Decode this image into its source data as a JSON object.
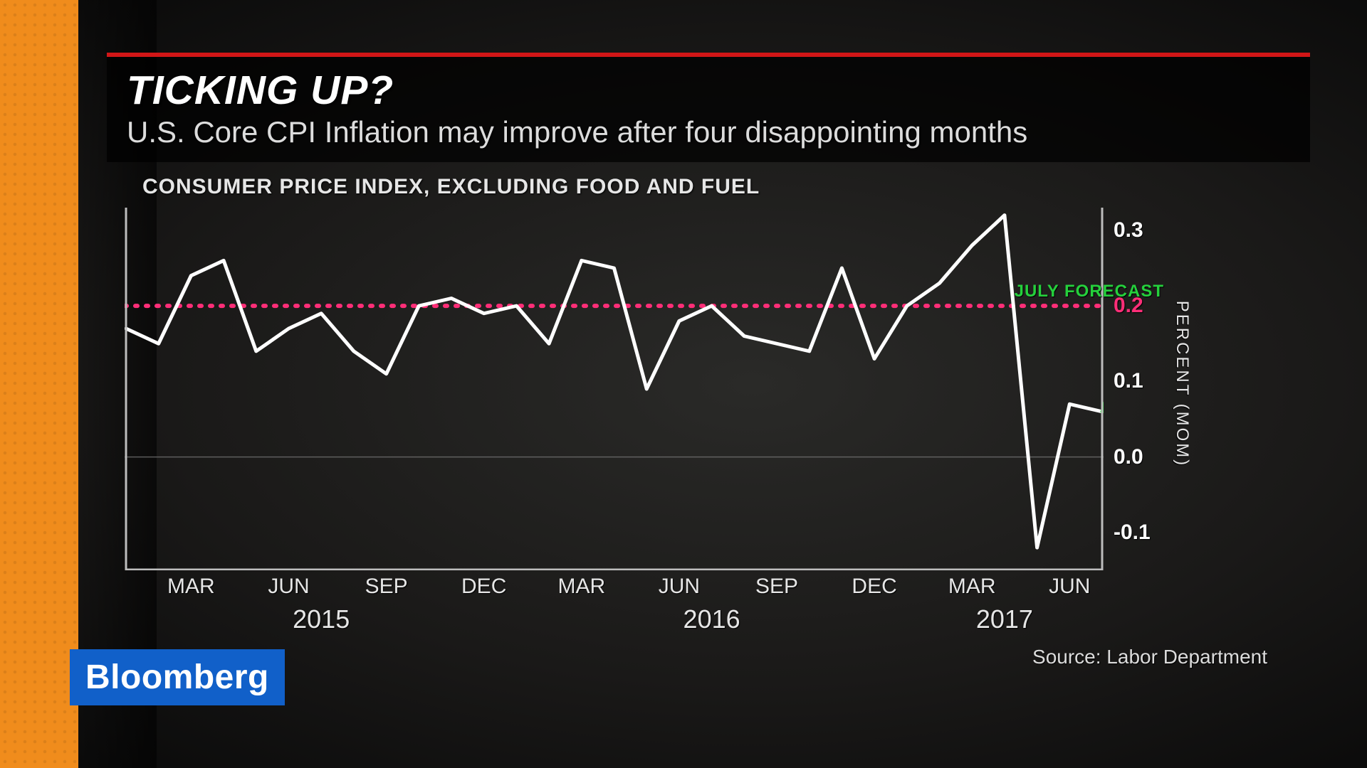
{
  "branding": {
    "logo_text": "Bloomberg",
    "logo_bg": "#1160c9",
    "logo_color": "#ffffff"
  },
  "header": {
    "rule_color": "#d11617",
    "title": "TICKING UP?",
    "subtitle_line": "U.S. Core CPI Inflation may improve after four disappointing months",
    "title_color": "#ffffff",
    "subtitle_color": "#dcdcdc",
    "title_fontsize": 57,
    "subtitle_fontsize": 42
  },
  "chart": {
    "type": "line",
    "subtitle": "CONSUMER PRICE INDEX, EXCLUDING FOOD AND FUEL",
    "subtitle_color": "#e6e6e6",
    "subtitle_fontsize": 30,
    "background_color": "transparent",
    "axis_color": "#bdbdbd",
    "grid_color": "#6f6f6f",
    "line_color": "#ffffff",
    "line_width": 5,
    "forecast_color": "#25d03c",
    "forecast_label": "JULY FORECAST",
    "forecast_label_fontsize": 24,
    "reference_line": {
      "value": 0.2,
      "color": "#ff2e78",
      "dash": "4,10",
      "width": 6
    },
    "y": {
      "label": "PERCENT (MOM)",
      "label_fontsize": 24,
      "min": -0.15,
      "max": 0.33,
      "ticks": [
        {
          "v": -0.1,
          "label": "-0.1"
        },
        {
          "v": 0.0,
          "label": "0.0"
        },
        {
          "v": 0.1,
          "label": "0.1"
        },
        {
          "v": 0.2,
          "label": "0.2",
          "highlight": true
        },
        {
          "v": 0.3,
          "label": "0.3"
        }
      ],
      "tick_fontsize": 30
    },
    "x": {
      "start": "2015-01",
      "end": "2017-07",
      "count": 31,
      "month_ticks": [
        {
          "i": 2,
          "label": "MAR"
        },
        {
          "i": 5,
          "label": "JUN"
        },
        {
          "i": 8,
          "label": "SEP"
        },
        {
          "i": 11,
          "label": "DEC"
        },
        {
          "i": 14,
          "label": "MAR"
        },
        {
          "i": 17,
          "label": "JUN"
        },
        {
          "i": 20,
          "label": "SEP"
        },
        {
          "i": 23,
          "label": "DEC"
        },
        {
          "i": 26,
          "label": "MAR"
        },
        {
          "i": 29,
          "label": "JUN"
        }
      ],
      "year_ticks": [
        {
          "i": 6,
          "label": "2015"
        },
        {
          "i": 18,
          "label": "2016"
        },
        {
          "i": 27,
          "label": "2017"
        }
      ],
      "tick_fontsize": 30,
      "year_fontsize": 36
    },
    "series": {
      "values": [
        0.17,
        0.15,
        0.24,
        0.26,
        0.14,
        0.17,
        0.19,
        0.14,
        0.11,
        0.2,
        0.21,
        0.19,
        0.2,
        0.15,
        0.26,
        0.25,
        0.09,
        0.18,
        0.2,
        0.16,
        0.15,
        0.14,
        0.25,
        0.13,
        0.2,
        0.23,
        0.28,
        0.32,
        -0.12,
        0.07,
        0.06
      ],
      "forecast_last_value": 0.18,
      "forecast_start_index": 30
    },
    "footer": {
      "source_label": "Source: Labor Department",
      "source_fontsize": 28,
      "source_color": "#dcdcdc"
    }
  },
  "colors": {
    "page_bg": "#000000",
    "orange": "#f08c1c"
  }
}
